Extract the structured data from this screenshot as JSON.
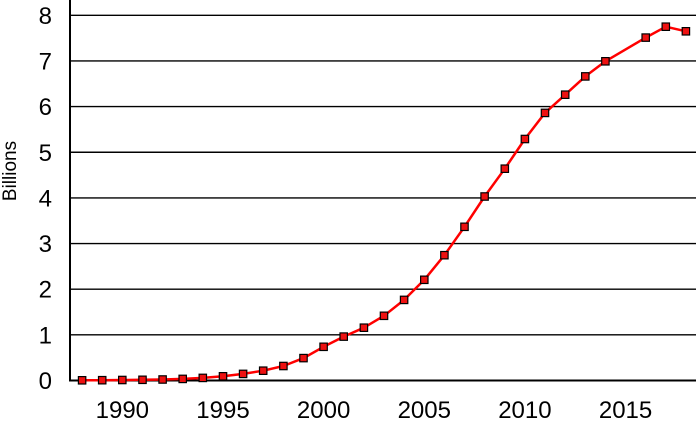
{
  "chart_data": {
    "type": "line",
    "title": "",
    "xlabel": "",
    "ylabel": "Billions",
    "ylim": [
      0,
      8
    ],
    "xlim": [
      1987.4,
      2018.5
    ],
    "grid": "horizontal gridlines at every integer from 0 to 8, full plot width",
    "legend": "none",
    "y_ticks": [
      0,
      1,
      2,
      3,
      4,
      5,
      6,
      7,
      8
    ],
    "x_ticks": [
      1990,
      1995,
      2000,
      2005,
      2010,
      2015
    ],
    "series": [
      {
        "name": "",
        "line_color": "#ff0000",
        "marker": "filled-square",
        "marker_fill": "#ee1111",
        "marker_edge": "#000000",
        "points": [
          [
            1988,
            0.004
          ],
          [
            1989,
            0.007
          ],
          [
            1990,
            0.011
          ],
          [
            1991,
            0.016
          ],
          [
            1992,
            0.023
          ],
          [
            1993,
            0.034
          ],
          [
            1994,
            0.056
          ],
          [
            1995,
            0.091
          ],
          [
            1996,
            0.145
          ],
          [
            1997,
            0.215
          ],
          [
            1998,
            0.318
          ],
          [
            1999,
            0.49
          ],
          [
            2000,
            0.738
          ],
          [
            2001,
            0.961
          ],
          [
            2002,
            1.157
          ],
          [
            2003,
            1.417
          ],
          [
            2004,
            1.765
          ],
          [
            2005,
            2.205
          ],
          [
            2006,
            2.745
          ],
          [
            2007,
            3.368
          ],
          [
            2008,
            4.03
          ],
          [
            2009,
            4.64
          ],
          [
            2010,
            5.29
          ],
          [
            2011,
            5.863
          ],
          [
            2012,
            6.261
          ],
          [
            2013,
            6.661
          ],
          [
            2014,
            6.993
          ],
          [
            2016,
            7.511
          ],
          [
            2017,
            7.75
          ],
          [
            2018,
            7.65
          ]
        ],
        "note": "no data point at 2015; the line connects 2014 directly to 2016"
      }
    ],
    "colors": {
      "background": "#ffffff",
      "axis": "#000000",
      "gridline": "#000000",
      "text": "#000000"
    }
  }
}
